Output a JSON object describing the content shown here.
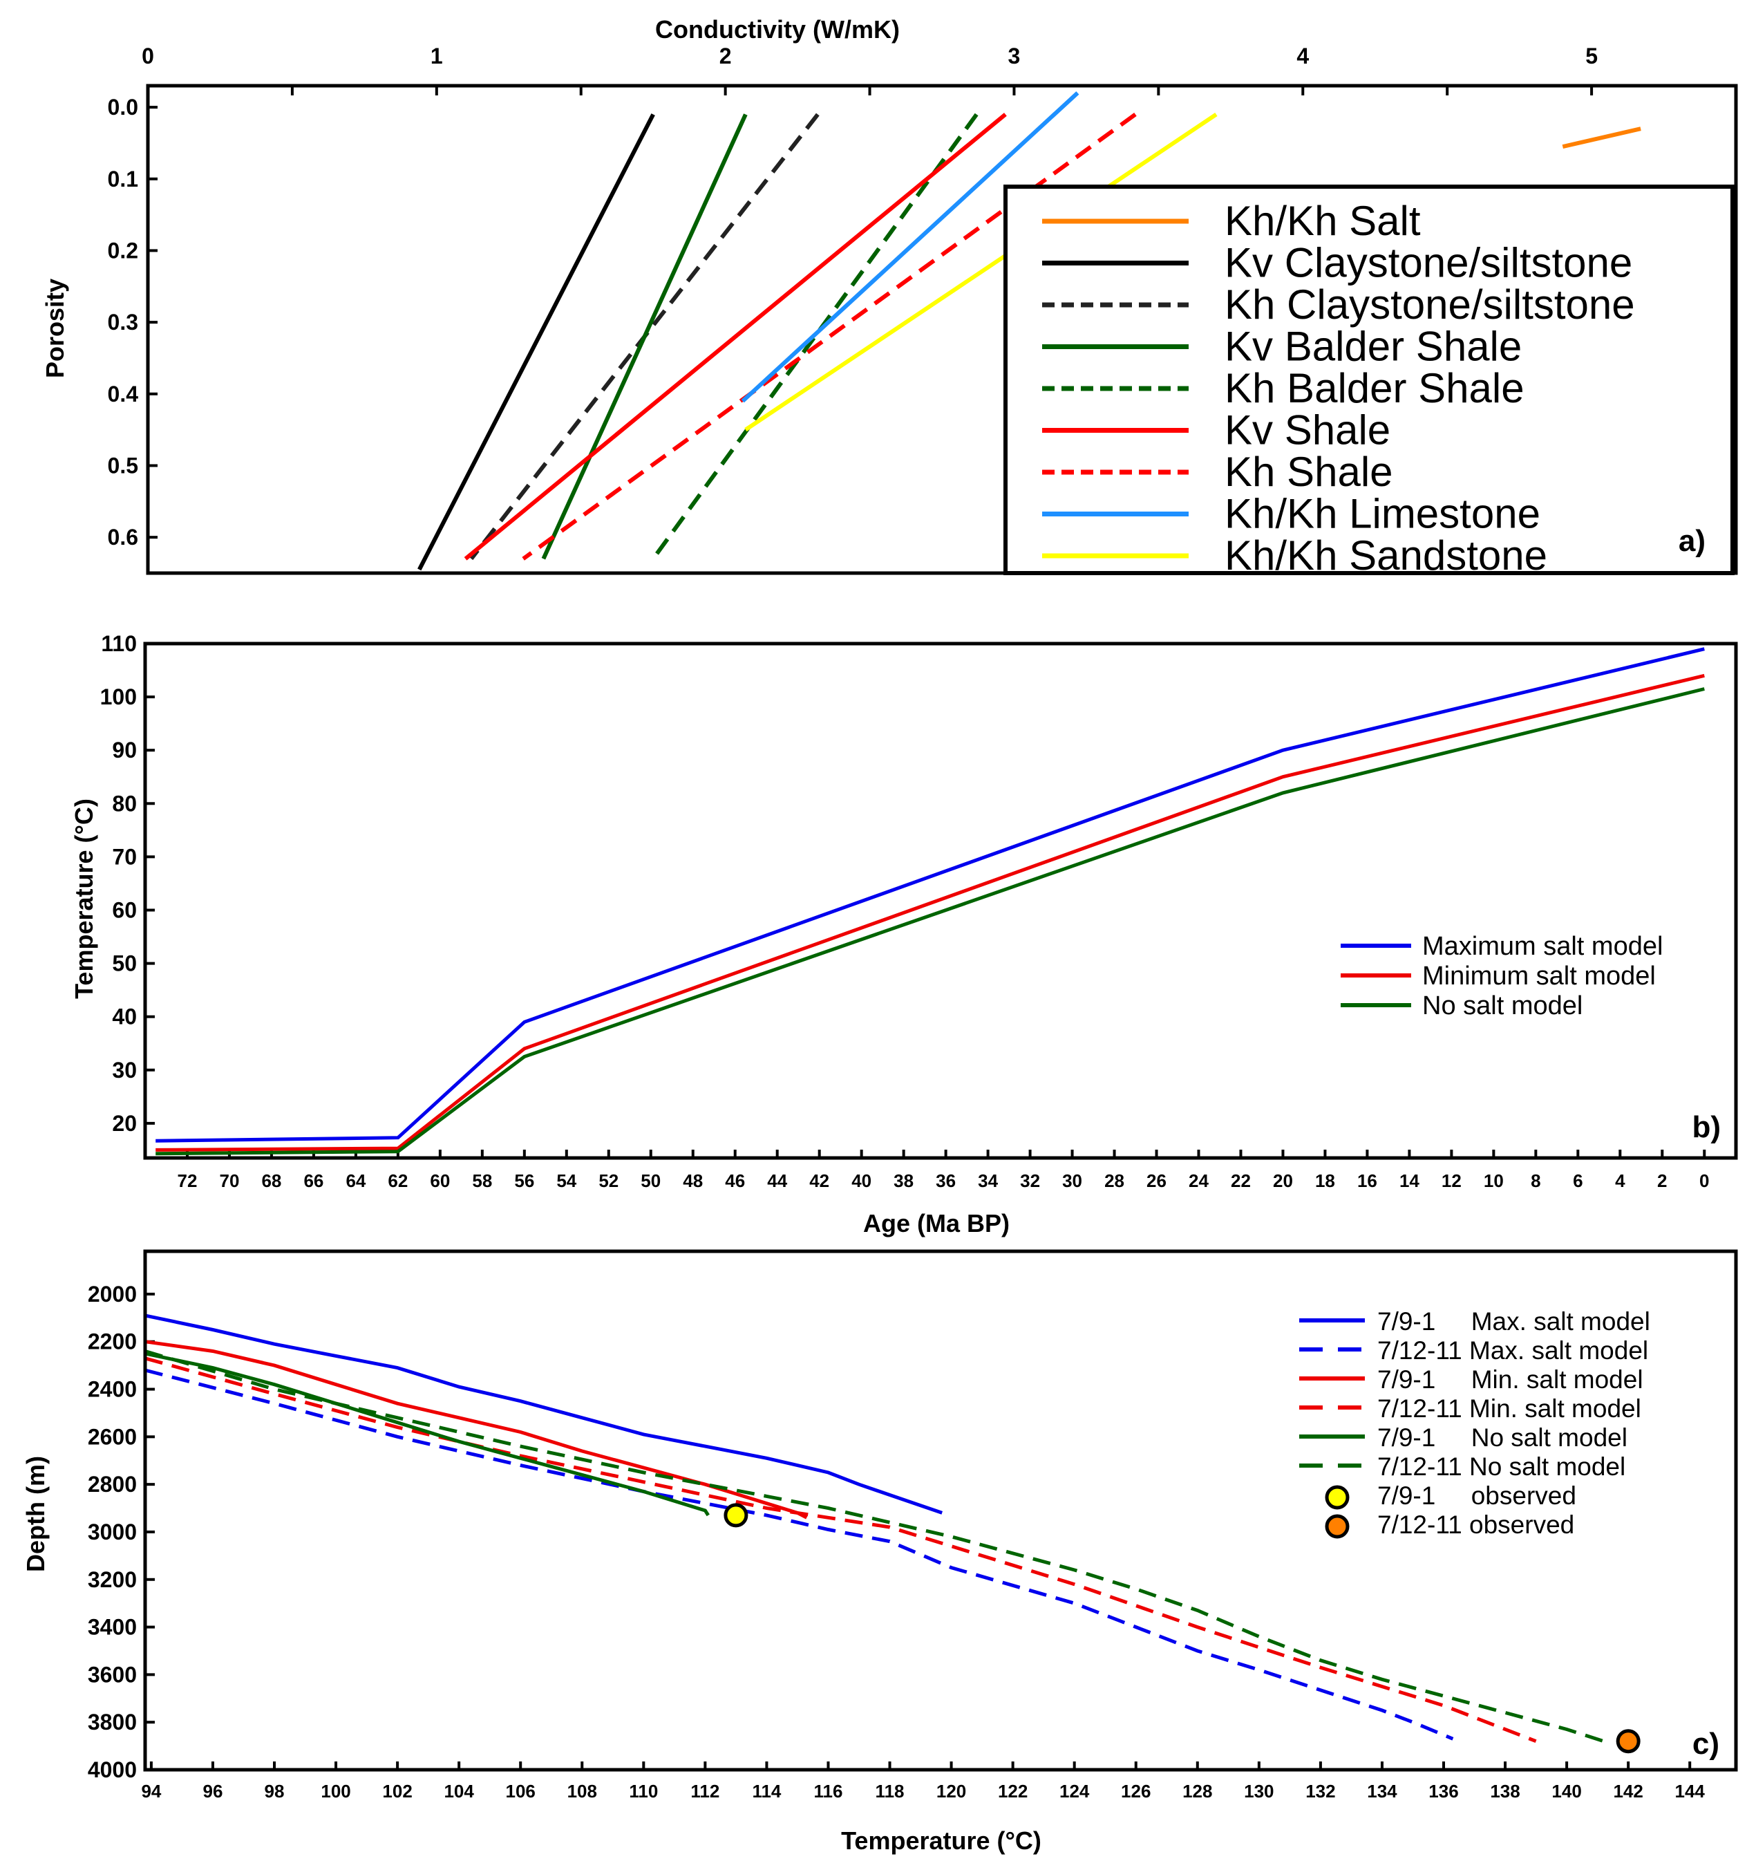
{
  "chart_data": [
    {
      "panel": "a",
      "type": "line",
      "panel_label": "a)",
      "title": "Conductivity (W/mK)",
      "xlabel": "Conductivity (W/mK)",
      "ylabel": "Porosity",
      "x_axis_position": "top",
      "xlim": [
        0,
        5.5
      ],
      "ylim": [
        0.65,
        -0.03
      ],
      "x_ticks": [
        0,
        1,
        2,
        3,
        4,
        5
      ],
      "y_ticks": [
        0.0,
        0.1,
        0.2,
        0.3,
        0.4,
        0.5,
        0.6
      ],
      "x_tick_labels": [
        "0",
        "1",
        "2",
        "3",
        "4",
        "5"
      ],
      "y_tick_labels": [
        "0.0",
        "0.1",
        "0.2",
        "0.3",
        "0.4",
        "0.5",
        "0.6"
      ],
      "legend_position": "right",
      "series": [
        {
          "name": "Kh/Kh Salt",
          "color": "#ff8000",
          "style": "solid",
          "points": [
            [
              4.9,
              0.055
            ],
            [
              5.17,
              0.03
            ]
          ]
        },
        {
          "name": "Kv Claystone/siltstone",
          "color": "#000000",
          "style": "solid",
          "points": [
            [
              1.75,
              0.01
            ],
            [
              0.94,
              0.645
            ]
          ]
        },
        {
          "name": "Kh Claystone/siltstone",
          "color": "#222222",
          "style": "dashed",
          "points": [
            [
              2.32,
              0.01
            ],
            [
              1.12,
              0.63
            ]
          ]
        },
        {
          "name": "Kv Balder Shale",
          "color": "#006000",
          "style": "solid",
          "points": [
            [
              2.07,
              0.01
            ],
            [
              1.37,
              0.63
            ]
          ]
        },
        {
          "name": "Kh Balder Shale",
          "color": "#006000",
          "style": "dashed",
          "points": [
            [
              2.87,
              0.01
            ],
            [
              1.75,
              0.63
            ]
          ]
        },
        {
          "name": "Kv Shale",
          "color": "#ff0000",
          "style": "solid",
          "points": [
            [
              2.97,
              0.01
            ],
            [
              1.1,
              0.63
            ]
          ]
        },
        {
          "name": "Kh Shale",
          "color": "#ff0000",
          "style": "dashed",
          "points": [
            [
              3.42,
              0.01
            ],
            [
              1.3,
              0.63
            ]
          ]
        },
        {
          "name": "Kh/Kh Limestone",
          "color": "#1e90ff",
          "style": "solid",
          "points": [
            [
              3.22,
              -0.02
            ],
            [
              2.06,
              0.41
            ]
          ]
        },
        {
          "name": "Kh/Kh Sandstone",
          "color": "#ffff00",
          "style": "solid",
          "points": [
            [
              3.7,
              0.01
            ],
            [
              2.07,
              0.45
            ]
          ]
        }
      ]
    },
    {
      "panel": "b",
      "type": "line",
      "panel_label": "b)",
      "title": "",
      "xlabel": "Age (Ma BP)",
      "ylabel": "Temperature (°C)",
      "xlim": [
        74,
        -1.5
      ],
      "ylim": [
        13.5,
        110
      ],
      "x_ticks": [
        72,
        70,
        68,
        66,
        64,
        62,
        60,
        58,
        56,
        54,
        52,
        50,
        48,
        46,
        44,
        42,
        40,
        38,
        36,
        34,
        32,
        30,
        28,
        26,
        24,
        22,
        20,
        18,
        16,
        14,
        12,
        10,
        8,
        6,
        4,
        2,
        0
      ],
      "x_tick_labels": [
        "72",
        "70",
        "68",
        "66",
        "64",
        "62",
        "60",
        "58",
        "56",
        "54",
        "52",
        "50",
        "48",
        "46",
        "44",
        "42",
        "40",
        "38",
        "36",
        "34",
        "32",
        "30",
        "28",
        "26",
        "24",
        "22",
        "20",
        "18",
        "16",
        "14",
        "12",
        "10",
        "8",
        "6",
        "4",
        "2",
        "0"
      ],
      "y_ticks": [
        20,
        30,
        40,
        50,
        60,
        70,
        80,
        90,
        100,
        110
      ],
      "y_tick_labels": [
        "20",
        "30",
        "40",
        "50",
        "60",
        "70",
        "80",
        "90",
        "100",
        "110"
      ],
      "legend_position": "center-right",
      "series": [
        {
          "name": "Maximum salt model",
          "color": "#0000ee",
          "style": "solid",
          "points": [
            [
              73.5,
              16.7
            ],
            [
              62,
              17.3
            ],
            [
              56,
              39
            ],
            [
              20,
              90
            ],
            [
              0,
              109
            ]
          ]
        },
        {
          "name": "Minimum salt model",
          "color": "#ee0000",
          "style": "solid",
          "points": [
            [
              73.5,
              15.0
            ],
            [
              62,
              15.3
            ],
            [
              56,
              34
            ],
            [
              20,
              85
            ],
            [
              0,
              104
            ]
          ]
        },
        {
          "name": "No salt model",
          "color": "#006400",
          "style": "solid",
          "points": [
            [
              73.5,
              14.3
            ],
            [
              62,
              14.7
            ],
            [
              56,
              32.5
            ],
            [
              20,
              82
            ],
            [
              0,
              101.5
            ]
          ]
        }
      ]
    },
    {
      "panel": "c",
      "type": "line",
      "panel_label": "c)",
      "title": "",
      "xlabel": "Temperature (°C)",
      "ylabel": "Depth (m)",
      "xlim": [
        93.8,
        145.5
      ],
      "ylim": [
        4000,
        1820
      ],
      "x_ticks": [
        94,
        96,
        98,
        100,
        102,
        104,
        106,
        108,
        110,
        112,
        114,
        116,
        118,
        120,
        122,
        124,
        126,
        128,
        130,
        132,
        134,
        136,
        138,
        140,
        142,
        144
      ],
      "x_tick_labels": [
        "94",
        "96",
        "98",
        "100",
        "102",
        "104",
        "106",
        "108",
        "110",
        "112",
        "114",
        "116",
        "118",
        "120",
        "122",
        "124",
        "126",
        "128",
        "130",
        "132",
        "134",
        "136",
        "138",
        "140",
        "142",
        "144"
      ],
      "y_ticks": [
        2000,
        2200,
        2400,
        2600,
        2800,
        3000,
        3200,
        3400,
        3600,
        3800,
        4000
      ],
      "y_tick_labels": [
        "2000",
        "2200",
        "2400",
        "2600",
        "2800",
        "3000",
        "3200",
        "3400",
        "3600",
        "3800",
        "4000"
      ],
      "legend_position": "top-right",
      "series": [
        {
          "name": "7/9-1     Max. salt model",
          "color": "#0000ee",
          "style": "solid",
          "points": [
            [
              93.8,
              2090
            ],
            [
              96,
              2150
            ],
            [
              98,
              2210
            ],
            [
              100,
              2260
            ],
            [
              102,
              2310
            ],
            [
              104,
              2390
            ],
            [
              106,
              2450
            ],
            [
              108,
              2520
            ],
            [
              110,
              2590
            ],
            [
              112,
              2640
            ],
            [
              114,
              2690
            ],
            [
              116,
              2750
            ],
            [
              117,
              2800
            ],
            [
              119.7,
              2920
            ]
          ]
        },
        {
          "name": "7/12-11 Max. salt model",
          "color": "#0000ee",
          "style": "dashed",
          "points": [
            [
              93.8,
              2320
            ],
            [
              98,
              2460
            ],
            [
              102,
              2600
            ],
            [
              106,
              2720
            ],
            [
              110,
              2830
            ],
            [
              112,
              2880
            ],
            [
              114,
              2930
            ],
            [
              115,
              2960
            ],
            [
              116,
              2990
            ],
            [
              118,
              3040
            ],
            [
              120,
              3150
            ],
            [
              124,
              3300
            ],
            [
              128,
              3500
            ],
            [
              130,
              3580
            ],
            [
              134,
              3750
            ],
            [
              135,
              3800
            ],
            [
              136.3,
              3870
            ]
          ]
        },
        {
          "name": "7/9-1     Min. salt model",
          "color": "#ee0000",
          "style": "solid",
          "points": [
            [
              93.8,
              2200
            ],
            [
              96,
              2240
            ],
            [
              98,
              2300
            ],
            [
              100,
              2380
            ],
            [
              102,
              2460
            ],
            [
              104,
              2520
            ],
            [
              106,
              2580
            ],
            [
              108,
              2660
            ],
            [
              110,
              2730
            ],
            [
              112,
              2800
            ],
            [
              113,
              2840
            ],
            [
              114,
              2880
            ],
            [
              115,
              2920
            ],
            [
              115.3,
              2940
            ]
          ]
        },
        {
          "name": "7/12-11 Min. salt model",
          "color": "#ee0000",
          "style": "dashed",
          "points": [
            [
              93.8,
              2270
            ],
            [
              98,
              2420
            ],
            [
              102,
              2560
            ],
            [
              106,
              2680
            ],
            [
              110,
              2790
            ],
            [
              114,
              2900
            ],
            [
              116,
              2940
            ],
            [
              118,
              2980
            ],
            [
              120,
              3060
            ],
            [
              124,
              3220
            ],
            [
              128,
              3400
            ],
            [
              132,
              3570
            ],
            [
              136,
              3730
            ],
            [
              139,
              3880
            ]
          ]
        },
        {
          "name": "7/9-1     No salt model",
          "color": "#006400",
          "style": "solid",
          "points": [
            [
              93.8,
              2250
            ],
            [
              96,
              2310
            ],
            [
              98,
              2380
            ],
            [
              100,
              2460
            ],
            [
              102,
              2540
            ],
            [
              104,
              2620
            ],
            [
              106,
              2690
            ],
            [
              108,
              2760
            ],
            [
              110,
              2830
            ],
            [
              112,
              2910
            ],
            [
              112.1,
              2930
            ]
          ]
        },
        {
          "name": "7/12-11 No salt model",
          "color": "#006400",
          "style": "dashed",
          "points": [
            [
              93.8,
              2240
            ],
            [
              98,
              2400
            ],
            [
              102,
              2520
            ],
            [
              106,
              2640
            ],
            [
              110,
              2750
            ],
            [
              112,
              2800
            ],
            [
              114,
              2850
            ],
            [
              116,
              2900
            ],
            [
              118,
              2960
            ],
            [
              120,
              3020
            ],
            [
              124,
              3160
            ],
            [
              126,
              3240
            ],
            [
              128,
              3330
            ],
            [
              130,
              3440
            ],
            [
              132,
              3540
            ],
            [
              134,
              3620
            ],
            [
              136,
              3690
            ],
            [
              138,
              3760
            ],
            [
              140,
              3830
            ],
            [
              141.2,
              3880
            ]
          ]
        },
        {
          "name": "7/9-1     observed",
          "color": "#ffff00",
          "style": "marker",
          "points": [
            [
              113,
              2930
            ]
          ]
        },
        {
          "name": "7/12-11 observed",
          "color": "#ff8000",
          "style": "marker",
          "points": [
            [
              142,
              3880
            ]
          ]
        }
      ]
    }
  ]
}
